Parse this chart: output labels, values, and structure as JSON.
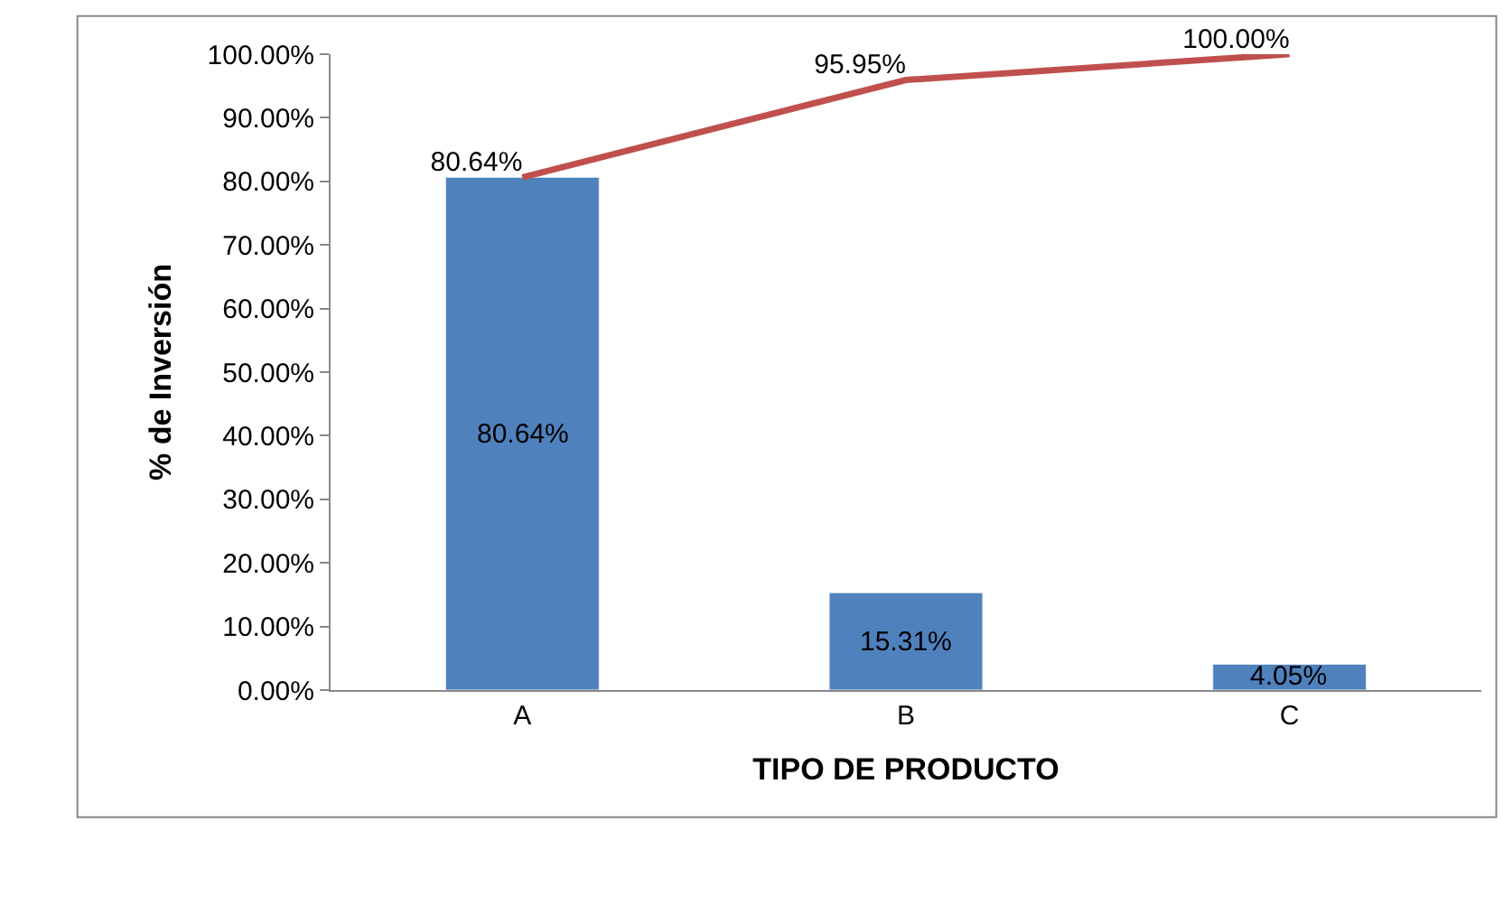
{
  "chart_data": {
    "type": "bar",
    "xlabel": "TIPO DE PRODUCTO",
    "ylabel": "% de Inversión",
    "categories": [
      "A",
      "B",
      "C"
    ],
    "series": [
      {
        "color": "#4f81bd",
        "values": [
          80.64,
          15.31,
          4.05
        ],
        "value_labels": [
          "80.64%",
          "15.31%",
          "4.05%"
        ]
      },
      {
        "type": "line",
        "color": "#c0504d",
        "values": [
          80.64,
          95.95,
          100.0
        ],
        "value_labels": [
          "80.64%",
          "95.95%",
          "100.00%"
        ]
      }
    ],
    "ylim": [
      0,
      100
    ],
    "yticks": [
      {
        "value": 0,
        "label": "0.00%"
      },
      {
        "value": 10,
        "label": "10.00%"
      },
      {
        "value": 20,
        "label": "20.00%"
      },
      {
        "value": 30,
        "label": "30.00%"
      },
      {
        "value": 40,
        "label": "40.00%"
      },
      {
        "value": 50,
        "label": "50.00%"
      },
      {
        "value": 60,
        "label": "60.00%"
      },
      {
        "value": 70,
        "label": "70.00%"
      },
      {
        "value": 80,
        "label": "80.00%"
      },
      {
        "value": 90,
        "label": "90.00%"
      },
      {
        "value": 100,
        "label": "100.00%"
      }
    ],
    "legend": false,
    "marker": "none"
  }
}
